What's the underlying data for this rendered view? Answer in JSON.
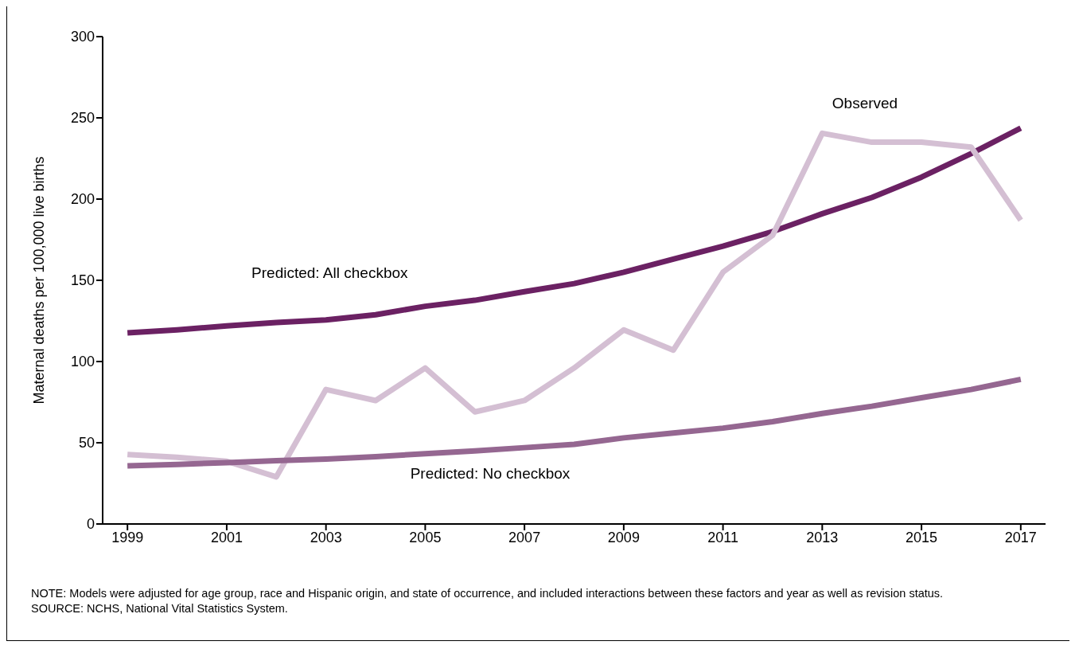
{
  "chart_data": {
    "type": "line",
    "x": [
      1999,
      2000,
      2001,
      2002,
      2003,
      2004,
      2005,
      2006,
      2007,
      2008,
      2009,
      2010,
      2011,
      2012,
      2013,
      2014,
      2015,
      2016,
      2017
    ],
    "series": [
      {
        "name": "Predicted: All checkbox",
        "color": "#6b2163",
        "values": [
          117.7,
          119.5,
          121.9,
          124,
          125.6,
          128.8,
          134,
          137.7,
          143,
          148,
          155,
          163,
          171,
          180,
          191,
          201,
          213.5,
          228,
          243.7
        ]
      },
      {
        "name": "Observed",
        "color": "#d4bfd3",
        "values": [
          42.8,
          41,
          38.6,
          29,
          82.8,
          76,
          96,
          69,
          76,
          96,
          119.5,
          107,
          155,
          177.7,
          240.5,
          235,
          235,
          232,
          187
        ]
      },
      {
        "name": "Predicted: No checkbox",
        "color": "#956791",
        "values": [
          35.8,
          36.7,
          37.7,
          39,
          40,
          41.4,
          43.3,
          45,
          47,
          49,
          53,
          56,
          59,
          63,
          68,
          72.5,
          77.7,
          82.8,
          89
        ]
      }
    ],
    "ylabel": "Maternal deaths per 100,000 live births",
    "xlim": [
      1998.5,
      2017.5
    ],
    "xticks": [
      1999,
      2001,
      2003,
      2005,
      2007,
      2009,
      2011,
      2013,
      2015,
      2017
    ],
    "ylim": [
      0,
      300
    ],
    "yticks": [
      0,
      50,
      100,
      150,
      200,
      250,
      300
    ],
    "grid": false,
    "legend": false,
    "marker": "none",
    "line_style": "solid",
    "annotations": [
      "NOTE: Models were adjusted for age group, race and Hispanic origin, and state of occurrence, and included interactions between these factors and year as well as revision status.",
      "SOURCE: NCHS, National Vital Statistics System."
    ]
  }
}
